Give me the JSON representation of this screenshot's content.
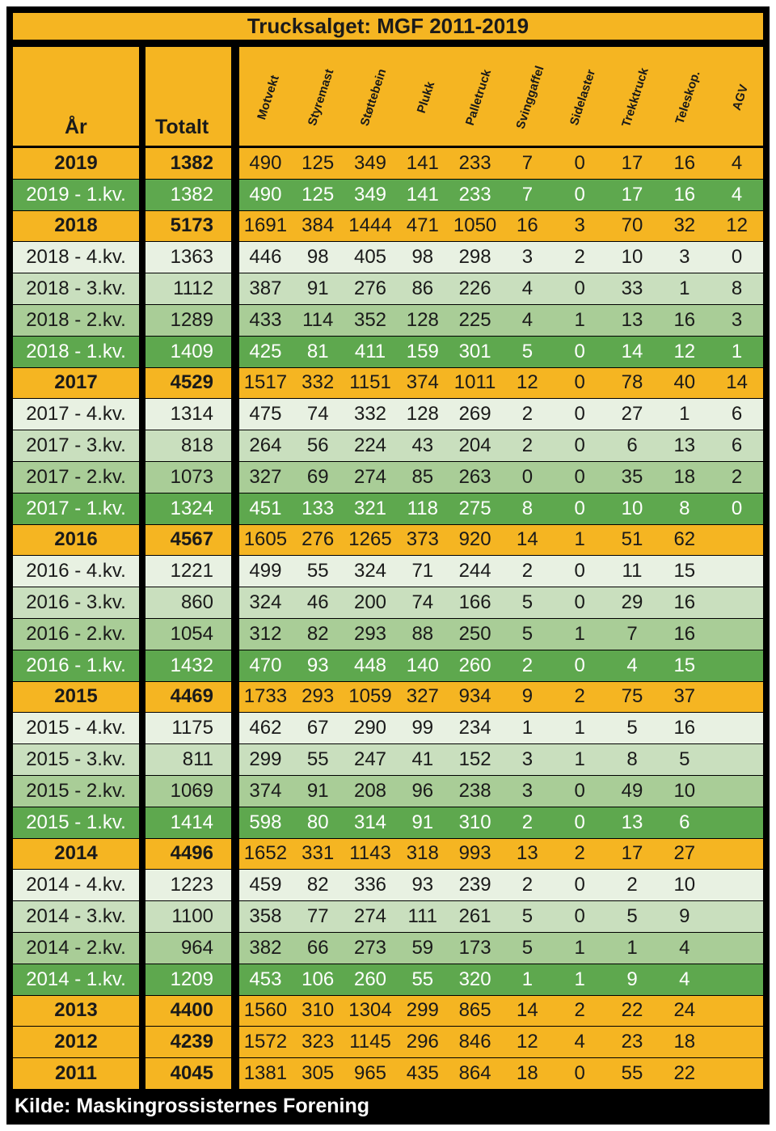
{
  "chart_data": {
    "type": "table",
    "title": "Trucksalget: MGF 2011-2019",
    "source": "Kilde: Maskingrossisternes Forening",
    "columns": [
      "År",
      "Totalt",
      "Motvekt",
      "Styremast",
      "Støttebein",
      "Plukk",
      "Palletruck",
      "Svinggaffel",
      "Sidelaster",
      "Trekktruck",
      "Teleskop.",
      "AGV"
    ],
    "rows": [
      {
        "label": "2019",
        "kind": "year",
        "values": [
          "1382",
          "490",
          "125",
          "349",
          "141",
          "233",
          "7",
          "0",
          "17",
          "16",
          "4"
        ]
      },
      {
        "label": "2019 - 1.kv.",
        "kind": "q1",
        "values": [
          "1382",
          "490",
          "125",
          "349",
          "141",
          "233",
          "7",
          "0",
          "17",
          "16",
          "4"
        ]
      },
      {
        "label": "2018",
        "kind": "year",
        "values": [
          "5173",
          "1691",
          "384",
          "1444",
          "471",
          "1050",
          "16",
          "3",
          "70",
          "32",
          "12"
        ]
      },
      {
        "label": "2018 - 4.kv.",
        "kind": "q4",
        "values": [
          "1363",
          "446",
          "98",
          "405",
          "98",
          "298",
          "3",
          "2",
          "10",
          "3",
          "0"
        ]
      },
      {
        "label": "2018 - 3.kv.",
        "kind": "q3",
        "values": [
          "1112",
          "387",
          "91",
          "276",
          "86",
          "226",
          "4",
          "0",
          "33",
          "1",
          "8"
        ]
      },
      {
        "label": "2018 - 2.kv.",
        "kind": "q2",
        "values": [
          "1289",
          "433",
          "114",
          "352",
          "128",
          "225",
          "4",
          "1",
          "13",
          "16",
          "3"
        ]
      },
      {
        "label": "2018 - 1.kv.",
        "kind": "q1",
        "values": [
          "1409",
          "425",
          "81",
          "411",
          "159",
          "301",
          "5",
          "0",
          "14",
          "12",
          "1"
        ]
      },
      {
        "label": "2017",
        "kind": "year",
        "values": [
          "4529",
          "1517",
          "332",
          "1151",
          "374",
          "1011",
          "12",
          "0",
          "78",
          "40",
          "14"
        ]
      },
      {
        "label": "2017 - 4.kv.",
        "kind": "q4",
        "values": [
          "1314",
          "475",
          "74",
          "332",
          "128",
          "269",
          "2",
          "0",
          "27",
          "1",
          "6"
        ]
      },
      {
        "label": "2017 - 3.kv.",
        "kind": "q3",
        "values": [
          "818",
          "264",
          "56",
          "224",
          "43",
          "204",
          "2",
          "0",
          "6",
          "13",
          "6"
        ]
      },
      {
        "label": "2017 - 2.kv.",
        "kind": "q2",
        "values": [
          "1073",
          "327",
          "69",
          "274",
          "85",
          "263",
          "0",
          "0",
          "35",
          "18",
          "2"
        ]
      },
      {
        "label": "2017 - 1.kv.",
        "kind": "q1",
        "values": [
          "1324",
          "451",
          "133",
          "321",
          "118",
          "275",
          "8",
          "0",
          "10",
          "8",
          "0"
        ]
      },
      {
        "label": "2016",
        "kind": "year",
        "values": [
          "4567",
          "1605",
          "276",
          "1265",
          "373",
          "920",
          "14",
          "1",
          "51",
          "62",
          ""
        ]
      },
      {
        "label": "2016 - 4.kv.",
        "kind": "q4",
        "values": [
          "1221",
          "499",
          "55",
          "324",
          "71",
          "244",
          "2",
          "0",
          "11",
          "15",
          ""
        ]
      },
      {
        "label": "2016 - 3.kv.",
        "kind": "q3",
        "values": [
          "860",
          "324",
          "46",
          "200",
          "74",
          "166",
          "5",
          "0",
          "29",
          "16",
          ""
        ]
      },
      {
        "label": "2016 - 2.kv.",
        "kind": "q2",
        "values": [
          "1054",
          "312",
          "82",
          "293",
          "88",
          "250",
          "5",
          "1",
          "7",
          "16",
          ""
        ]
      },
      {
        "label": "2016 - 1.kv.",
        "kind": "q1",
        "values": [
          "1432",
          "470",
          "93",
          "448",
          "140",
          "260",
          "2",
          "0",
          "4",
          "15",
          ""
        ]
      },
      {
        "label": "2015",
        "kind": "year",
        "values": [
          "4469",
          "1733",
          "293",
          "1059",
          "327",
          "934",
          "9",
          "2",
          "75",
          "37",
          ""
        ]
      },
      {
        "label": "2015 - 4.kv.",
        "kind": "q4",
        "values": [
          "1175",
          "462",
          "67",
          "290",
          "99",
          "234",
          "1",
          "1",
          "5",
          "16",
          ""
        ]
      },
      {
        "label": "2015 - 3.kv.",
        "kind": "q3",
        "values": [
          "811",
          "299",
          "55",
          "247",
          "41",
          "152",
          "3",
          "1",
          "8",
          "5",
          ""
        ]
      },
      {
        "label": "2015 - 2.kv.",
        "kind": "q2",
        "values": [
          "1069",
          "374",
          "91",
          "208",
          "96",
          "238",
          "3",
          "0",
          "49",
          "10",
          ""
        ]
      },
      {
        "label": "2015 - 1.kv.",
        "kind": "q1",
        "values": [
          "1414",
          "598",
          "80",
          "314",
          "91",
          "310",
          "2",
          "0",
          "13",
          "6",
          ""
        ]
      },
      {
        "label": "2014",
        "kind": "year",
        "values": [
          "4496",
          "1652",
          "331",
          "1143",
          "318",
          "993",
          "13",
          "2",
          "17",
          "27",
          ""
        ]
      },
      {
        "label": "2014 - 4.kv.",
        "kind": "q4",
        "values": [
          "1223",
          "459",
          "82",
          "336",
          "93",
          "239",
          "2",
          "0",
          "2",
          "10",
          ""
        ]
      },
      {
        "label": "2014 - 3.kv.",
        "kind": "q3",
        "values": [
          "1100",
          "358",
          "77",
          "274",
          "111",
          "261",
          "5",
          "0",
          "5",
          "9",
          ""
        ]
      },
      {
        "label": "2014 - 2.kv.",
        "kind": "q2",
        "values": [
          "964",
          "382",
          "66",
          "273",
          "59",
          "173",
          "5",
          "1",
          "1",
          "4",
          ""
        ]
      },
      {
        "label": "2014 - 1.kv.",
        "kind": "q1",
        "values": [
          "1209",
          "453",
          "106",
          "260",
          "55",
          "320",
          "1",
          "1",
          "9",
          "4",
          ""
        ]
      },
      {
        "label": "2013",
        "kind": "year",
        "values": [
          "4400",
          "1560",
          "310",
          "1304",
          "299",
          "865",
          "14",
          "2",
          "22",
          "24",
          ""
        ]
      },
      {
        "label": "2012",
        "kind": "year",
        "values": [
          "4239",
          "1572",
          "323",
          "1145",
          "296",
          "846",
          "12",
          "4",
          "23",
          "18",
          ""
        ]
      },
      {
        "label": "2011",
        "kind": "year",
        "values": [
          "4045",
          "1381",
          "305",
          "965",
          "435",
          "864",
          "18",
          "0",
          "55",
          "22",
          ""
        ]
      }
    ]
  },
  "colors": {
    "frame": "#000000",
    "header": "#F5B522",
    "year_row": "#F5B522",
    "q4_row": "#E8F1E2",
    "q3_row": "#C9DFBE",
    "q2_row": "#A9CD97",
    "q1_row": "#5EA84E",
    "text_dark": "#1a1a1a",
    "text_light": "#ffffff"
  }
}
